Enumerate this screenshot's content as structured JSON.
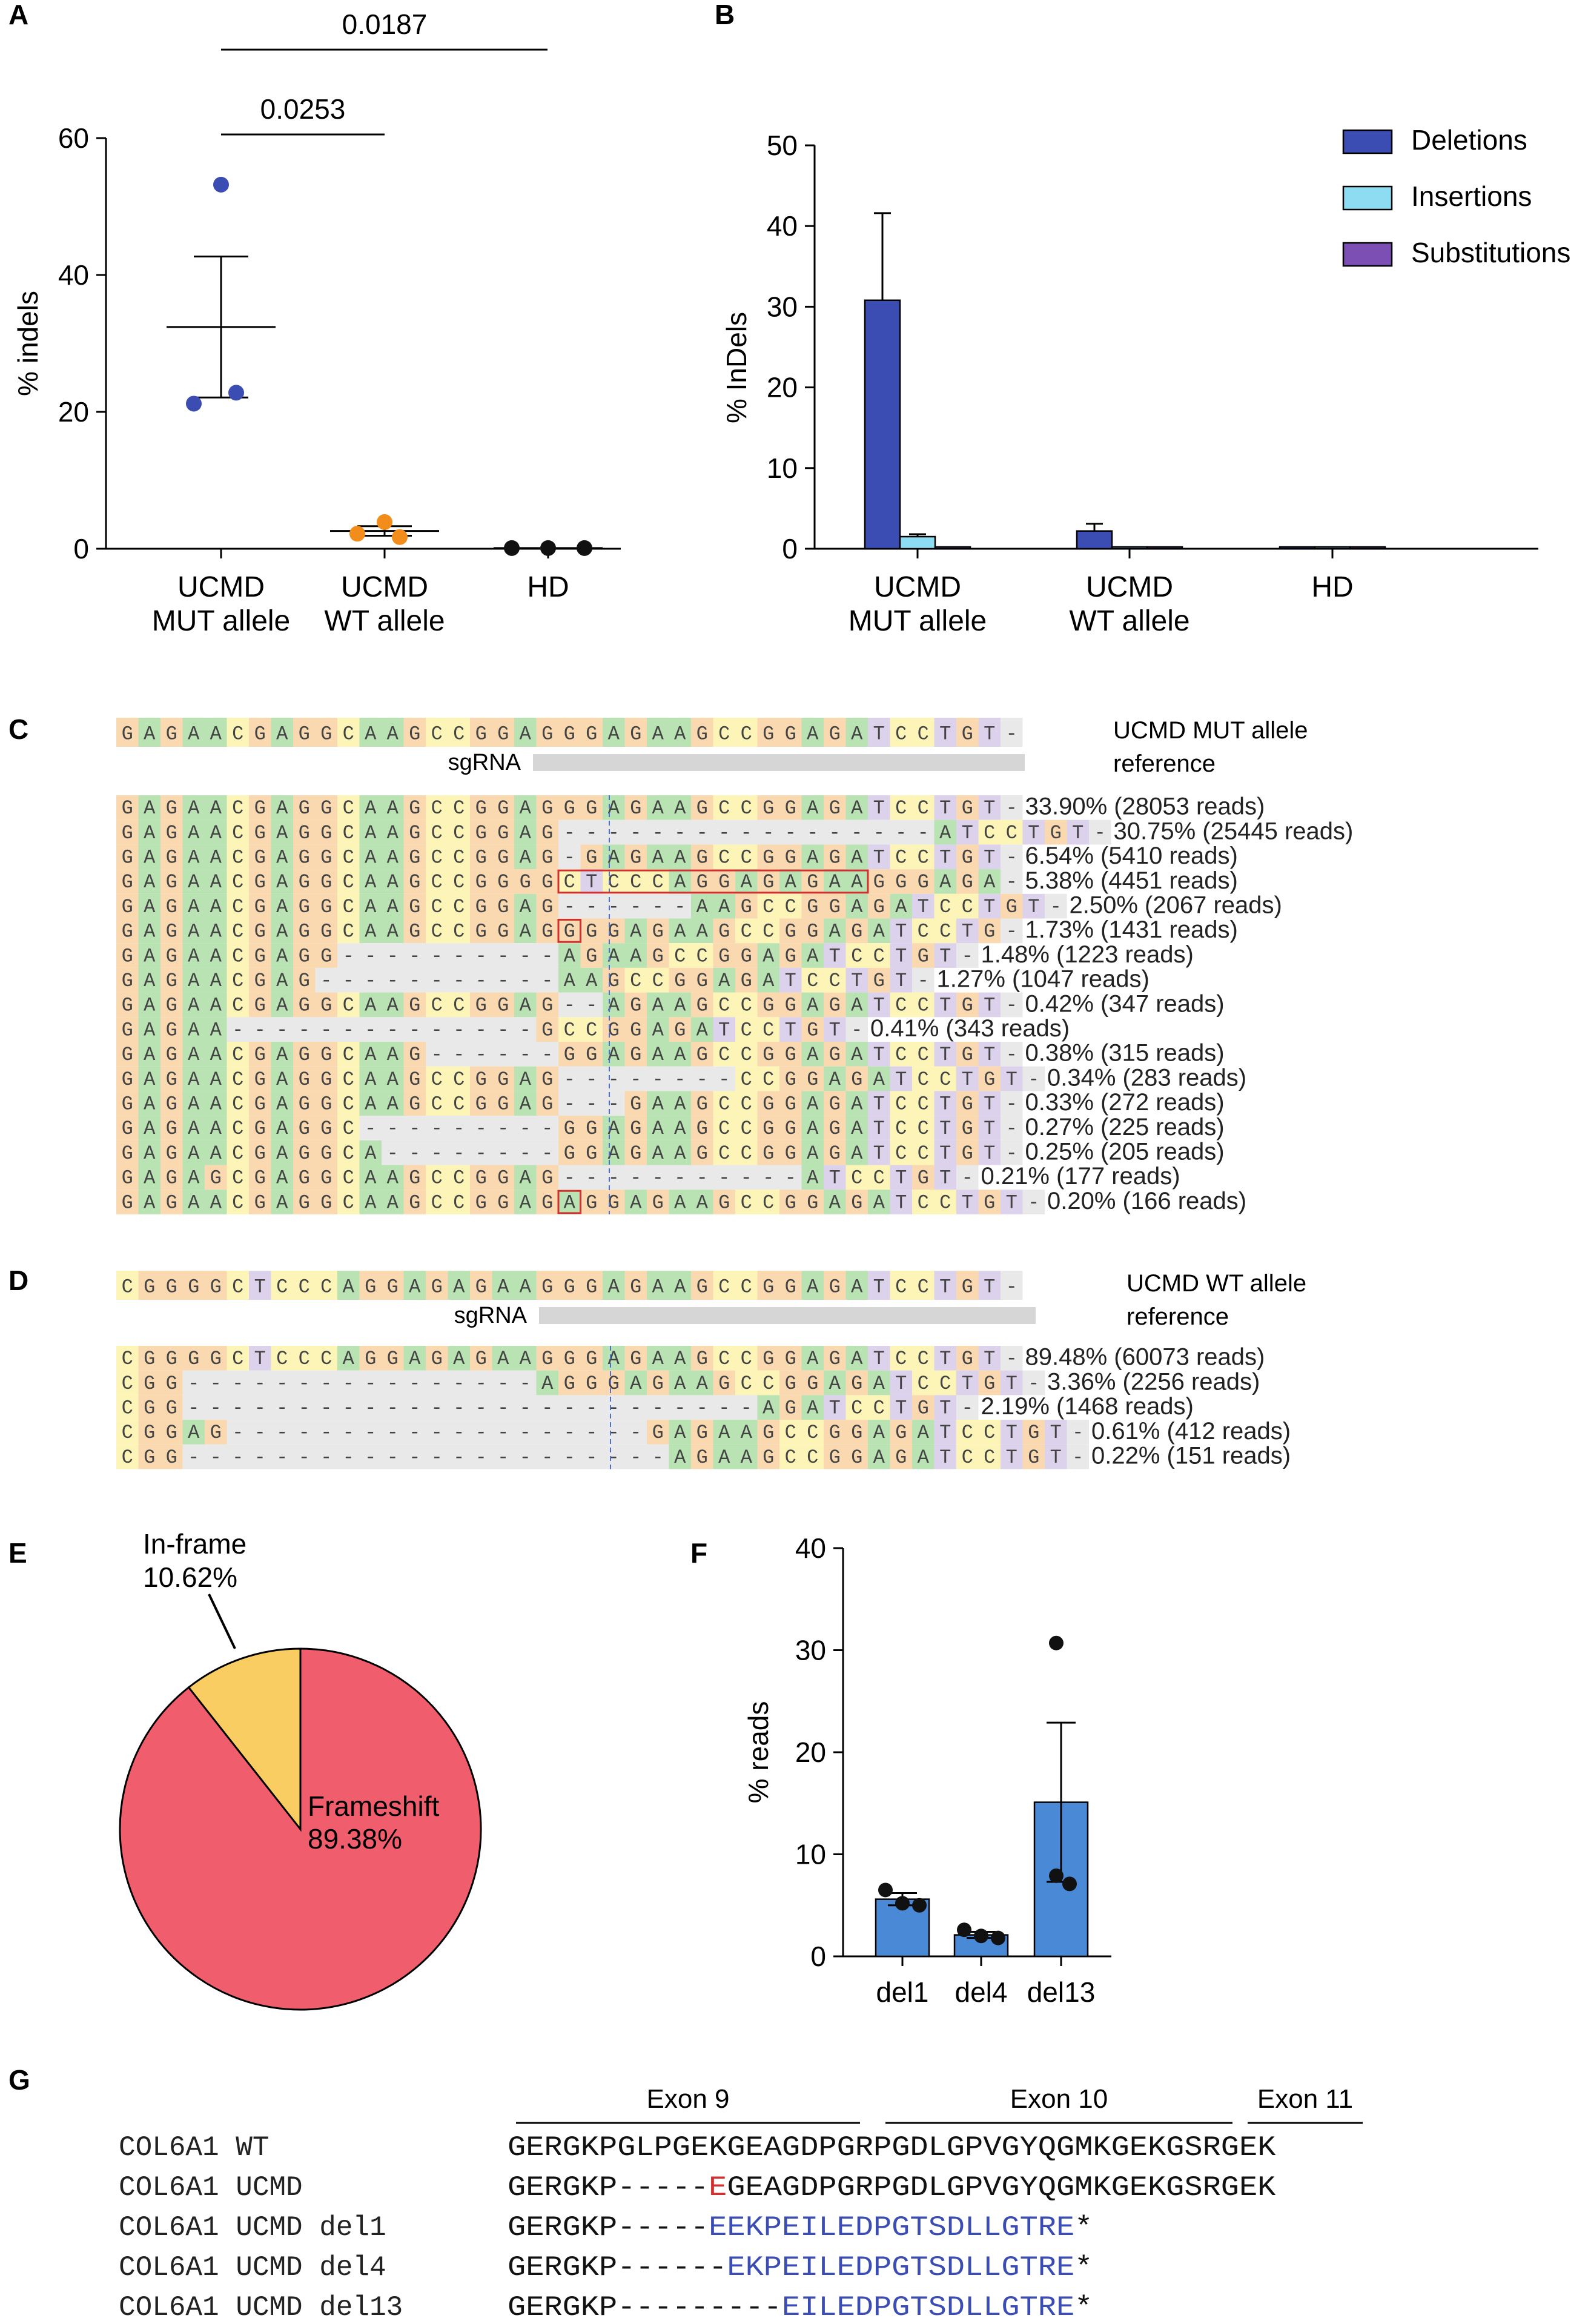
{
  "panel_labels": [
    "A",
    "B",
    "C",
    "D",
    "E",
    "F",
    "G"
  ],
  "colors": {
    "A": "#b9e3b3",
    "G": "#fbd9b0",
    "C": "#fdf5b8",
    "T": "#dcd2ec",
    "gap": "#e9e9e9",
    "blue": "#3b4db3",
    "orange": "#f28c1b",
    "black": "#111111",
    "deletions": "#3b4db3",
    "insertions": "#8ddcf2",
    "substitutions": "#7b4fb3",
    "frameshift": "#f05d6c",
    "inframe": "#f9cd61",
    "barF": "#4a89d6",
    "highlight": "#d32f2f",
    "protein_blue": "#3b4db3"
  },
  "chart_data": [
    {
      "panel": "A",
      "type": "scatter",
      "ylabel": "% indels",
      "yticks": [
        0,
        20,
        40,
        60
      ],
      "ylim": [
        0,
        60
      ],
      "categories": [
        "UCMD\nMUT allele",
        "UCMD\nWT allele",
        "HD"
      ],
      "category_lines": [
        [
          "UCMD",
          "MUT allele"
        ],
        [
          "UCMD",
          "WT allele"
        ],
        [
          "HD"
        ]
      ],
      "groups": [
        {
          "points": [
            53.2,
            21.2,
            22.8
          ],
          "mean": 32.4,
          "sem": 10.3,
          "color": "blue"
        },
        {
          "points": [
            3.9,
            2.2,
            1.7
          ],
          "mean": 2.6,
          "sem": 0.7,
          "color": "orange"
        },
        {
          "points": [
            0.1,
            0.1,
            0.1
          ],
          "mean": 0.1,
          "sem": 0.0,
          "color": "black"
        }
      ],
      "significance": [
        {
          "from": 0,
          "to": 1,
          "label": "0.0253"
        },
        {
          "from": 0,
          "to": 2,
          "label": "0.0187"
        }
      ]
    },
    {
      "panel": "B",
      "type": "bar",
      "ylabel": "% InDels",
      "yticks": [
        0,
        10,
        20,
        30,
        40,
        50
      ],
      "ylim": [
        0,
        50
      ],
      "categories": [
        "UCMD\nMUT allele",
        "UCMD\nWT allele",
        "HD"
      ],
      "category_lines": [
        [
          "UCMD",
          "MUT allele"
        ],
        [
          "UCMD",
          "WT allele"
        ],
        [
          "HD"
        ]
      ],
      "series": [
        {
          "name": "Deletions",
          "values": [
            30.8,
            2.2,
            0.0
          ],
          "errors": [
            10.8,
            0.9,
            0.0
          ],
          "color": "deletions"
        },
        {
          "name": "Insertions",
          "values": [
            1.5,
            0.0,
            0.0
          ],
          "errors": [
            0.3,
            0.0,
            0.0
          ],
          "color": "insertions"
        },
        {
          "name": "Substitutions",
          "values": [
            0.1,
            0.05,
            0.2
          ],
          "errors": [
            0.0,
            0.0,
            0.0
          ],
          "color": "substitutions"
        }
      ],
      "legend": "top-right"
    },
    {
      "panel": "E",
      "type": "pie",
      "slices": [
        {
          "label": "Frameshift",
          "value": 89.38,
          "text": "89.38%",
          "color": "frameshift"
        },
        {
          "label": "In-frame",
          "value": 10.62,
          "text": "10.62%",
          "color": "inframe"
        }
      ]
    },
    {
      "panel": "F",
      "type": "bar",
      "ylabel": "% reads",
      "yticks": [
        0,
        10,
        20,
        30,
        40
      ],
      "ylim": [
        0,
        40
      ],
      "categories": [
        "del1",
        "del4",
        "del13"
      ],
      "values": [
        5.6,
        2.1,
        15.1
      ],
      "errors": [
        0.6,
        0.3,
        7.8
      ],
      "points": [
        [
          6.5,
          5.2,
          5.0
        ],
        [
          2.6,
          2.0,
          1.8
        ],
        [
          30.7,
          7.9,
          7.1
        ]
      ],
      "color": "barF"
    }
  ],
  "panel_c": {
    "reference": "GAGAACGAGGCAAGCCGGAGGGAGAAGCCGGAGATCCTGT-",
    "ref_label": [
      "UCMD MUT allele",
      "reference"
    ],
    "sgrna_label": "sgRNA",
    "rows": [
      {
        "seq": "GAGAACGAGGCAAGCCGGAGGGAGAAGCCGGAGATCCTGT-",
        "label": "33.90% (28053 reads)"
      },
      {
        "seq": "GAGAACGAGGCAAGCCGGAG-----------------ATCCTGT-",
        "label": "30.75% (25445 reads)"
      },
      {
        "seq": "GAGAACGAGGCAAGCCGGAG-GAGAAGCCGGAGATCCTGT-",
        "label": "6.54% (5410 reads)"
      },
      {
        "seq": "GAGAACGAGGCAAGCCGGGGCTCCCAGGAGAGAAGGGAGA-",
        "label": "5.38% (4451 reads)"
      },
      {
        "seq": "GAGAACGAGGCAAGCCGGAG------AAGCCGGAGATCCTGT-",
        "label": "2.50% (2067 reads)"
      },
      {
        "seq": "GAGAACGAGGCAAGCCGGAGGGGAGAAGCCGGAGATCCTG-",
        "label": "1.73% (1431 reads)"
      },
      {
        "seq": "GAGAACGAGG----------AGAAGCCGGAGATCCTGT-",
        "label": "1.48% (1223 reads)"
      },
      {
        "seq": "GAGAACGAG-----------AAGCCGGAGATCCTGT-",
        "label": "1.27% (1047 reads)"
      },
      {
        "seq": "GAGAACGAGGCAAGCCGGAG--AGAAGCCGGAGATCCTGT-",
        "label": "0.42% (347 reads)"
      },
      {
        "seq": "GAGAA--------------GCCGGAGATCCTGT-",
        "label": "0.41% (343 reads)"
      },
      {
        "seq": "GAGAACGAGGCAAG------GGAGAAGCCGGAGATCCTGT-",
        "label": "0.38% (315 reads)"
      },
      {
        "seq": "GAGAACGAGGCAAGCCGGAG--------CCGGAGATCCTGT-",
        "label": "0.34% (283 reads)"
      },
      {
        "seq": "GAGAACGAGGCAAGCCGGAG---GAAGCCGGAGATCCTGT-",
        "label": "0.33% (272 reads)"
      },
      {
        "seq": "GAGAACGAGGC---------GGAGAAGCCGGAGATCCTGT-",
        "label": "0.27% (225 reads)"
      },
      {
        "seq": "GAGAACGAGGCA--------GGAGAAGCCGGAGATCCTGT-",
        "label": "0.25% (205 reads)"
      },
      {
        "seq": "GAGAGCGAGGCAAGCCGGAG-----------ATCCTGT-",
        "label": "0.21% (177 reads)"
      },
      {
        "seq": "GAGAACGAGGCAAGCCGGAGAGGAGAAGCCGGAGATCCTGT-",
        "label": "0.20% (166 reads)"
      }
    ]
  },
  "panel_d": {
    "reference": "CGGGGCTCCCAGGAGAGAAGGGAGAAGCCGGAGATCCTGT-",
    "ref_label": [
      "UCMD WT allele",
      "reference"
    ],
    "sgrna_label": "sgRNA",
    "rows": [
      {
        "seq": "CGGGGCTCCCAGGAGAGAAGGGAGAAGCCGGAGATCCTGT-",
        "label": "89.48% (60073 reads)"
      },
      {
        "seq": "CGG----------------AGGGAGAAGCCGGAGATCCTGT-",
        "label": "3.36% (2256 reads)"
      },
      {
        "seq": "CGG--------------------------AGATCCTGT-",
        "label": "2.19% (1468 reads)"
      },
      {
        "seq": "CGGAG-------------------GAGAAGCCGGAGATCCTGT-",
        "label": "0.61% (412 reads)"
      },
      {
        "seq": "CGG----------------------AGAAGCCGGAGATCCTGT-",
        "label": "0.22% (151 reads)"
      }
    ]
  },
  "panel_e": {
    "inframe_label": "In-frame",
    "inframe_value": "10.62%",
    "frameshift_label": "Frameshift",
    "frameshift_value": "89.38%"
  },
  "panel_g": {
    "exons": [
      "Exon 9",
      "Exon 10",
      "Exon 11"
    ],
    "rows": [
      {
        "name": "COL6A1  WT",
        "parts": [
          {
            "t": "GERGKPGLPGEKGEAGDPGRPGDLGPVGYQGMKGEKGSRGEK",
            "c": "black"
          }
        ]
      },
      {
        "name": "COL6A1  UCMD",
        "parts": [
          {
            "t": "GERGKP-----",
            "c": "black"
          },
          {
            "t": "E",
            "c": "red"
          },
          {
            "t": "GEAGDPGRPGDLGPVGYQGMKGEKGSRGEK",
            "c": "black"
          }
        ]
      },
      {
        "name": "COL6A1  UCMD  del1",
        "parts": [
          {
            "t": "GERGKP-----",
            "c": "black"
          },
          {
            "t": "EEKPEILEDPGTSDLLGTRE",
            "c": "blue"
          },
          {
            "t": "*",
            "c": "black"
          }
        ]
      },
      {
        "name": "COL6A1  UCMD  del4",
        "parts": [
          {
            "t": "GERGKP------",
            "c": "black"
          },
          {
            "t": "EKPEILEDPGTSDLLGTRE",
            "c": "blue"
          },
          {
            "t": "*",
            "c": "black"
          }
        ]
      },
      {
        "name": "COL6A1  UCMD  del13",
        "parts": [
          {
            "t": "GERGKP---------",
            "c": "black"
          },
          {
            "t": "EILEDPGTSDLLGTRE",
            "c": "blue"
          },
          {
            "t": "*",
            "c": "black"
          }
        ]
      }
    ]
  }
}
